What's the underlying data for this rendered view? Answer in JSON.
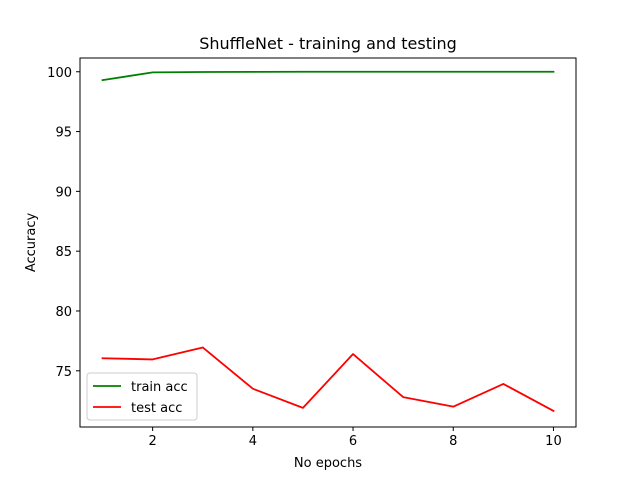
{
  "chart_data": {
    "type": "line",
    "title": "ShuffleNet - training and testing",
    "xlabel": "No epochs",
    "ylabel": "Accuracy",
    "x": [
      1,
      2,
      3,
      4,
      5,
      6,
      7,
      8,
      9,
      10
    ],
    "xlim": [
      0.55,
      10.45
    ],
    "ylim": [
      70.3,
      101.15
    ],
    "xticks": [
      2,
      4,
      6,
      8,
      10
    ],
    "yticks": [
      75,
      80,
      85,
      90,
      95,
      100
    ],
    "grid": false,
    "legend_position": "lower-left",
    "series": [
      {
        "name": "train acc",
        "color": "#008000",
        "values": [
          99.3,
          99.95,
          99.98,
          99.99,
          100.0,
          100.0,
          100.0,
          100.0,
          100.0,
          100.0
        ]
      },
      {
        "name": "test acc",
        "color": "#ff0000",
        "values": [
          76.05,
          75.95,
          76.95,
          73.5,
          71.9,
          76.4,
          72.8,
          72.0,
          73.9,
          71.65
        ]
      }
    ]
  }
}
